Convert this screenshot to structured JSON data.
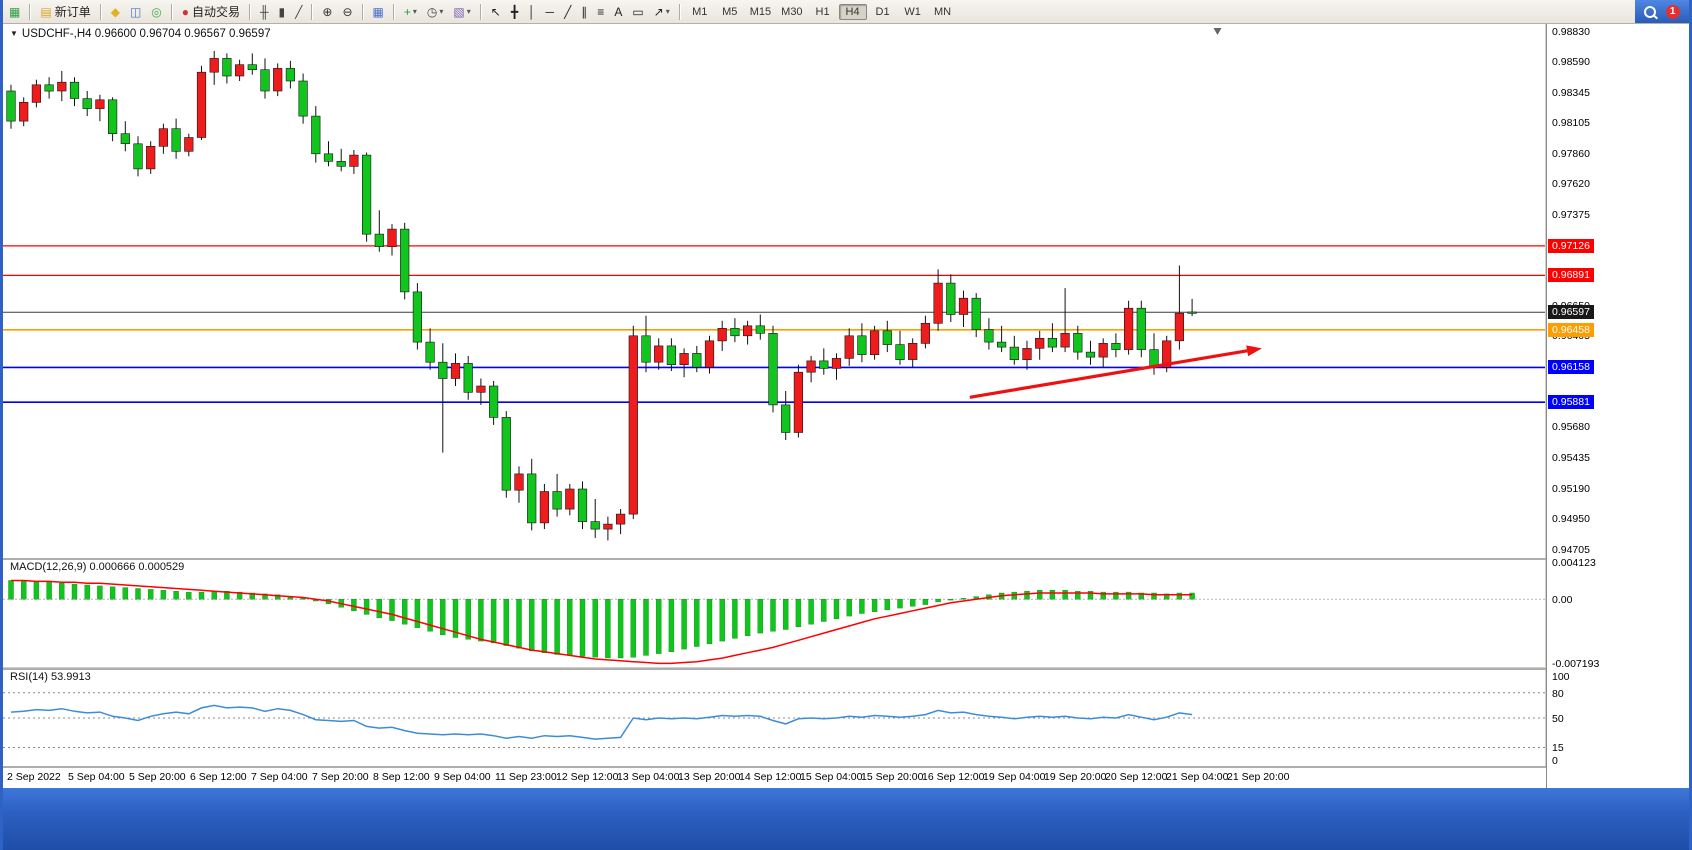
{
  "toolbar": {
    "notification_count": "1",
    "timeframes": [
      "M1",
      "M5",
      "M15",
      "M30",
      "H1",
      "H4",
      "D1",
      "W1",
      "MN"
    ],
    "active_timeframe": "H4",
    "groups": [
      [
        {
          "name": "new-chart-button",
          "glyph": "▦",
          "color": "#2f9e44"
        }
      ],
      [
        {
          "name": "new-order-button",
          "glyph": "▤",
          "color": "#d9a520",
          "label": "新订单"
        }
      ],
      [
        {
          "name": "metaeditor-button",
          "glyph": "◆",
          "color": "#e0b226"
        },
        {
          "name": "data-window-button",
          "glyph": "◫",
          "color": "#4a6fd0"
        },
        {
          "name": "strategy-tester-button",
          "glyph": "◎",
          "color": "#3fae49"
        }
      ],
      [
        {
          "name": "auto-trading-button",
          "glyph": "●",
          "color": "#d03535",
          "label": "自动交易"
        }
      ],
      [
        {
          "name": "bar-chart-button",
          "glyph": "╫",
          "color": "#444444"
        },
        {
          "name": "candlestick-chart-button",
          "glyph": "▮",
          "color": "#444444"
        },
        {
          "name": "line-chart-button",
          "glyph": "╱",
          "color": "#444444"
        }
      ],
      [
        {
          "name": "zoom-in-button",
          "glyph": "⊕",
          "color": "#333333"
        },
        {
          "name": "zoom-out-button",
          "glyph": "⊖",
          "color": "#333333"
        }
      ],
      [
        {
          "name": "tile-windows-button",
          "glyph": "▦",
          "color": "#4a6fd0"
        }
      ],
      [
        {
          "name": "indicators-button",
          "glyph": "+",
          "color": "#2f9e44",
          "caret": true
        },
        {
          "name": "periods-button",
          "glyph": "◷",
          "color": "#444444",
          "caret": true
        },
        {
          "name": "template-button",
          "glyph": "▧",
          "color": "#7a5fb0",
          "caret": true
        }
      ],
      [
        {
          "name": "cursor-button",
          "glyph": "↖",
          "color": "#222222"
        },
        {
          "name": "crosshair-button",
          "glyph": "╋",
          "color": "#222222"
        },
        {
          "name": "vertical-line-button",
          "glyph": "│",
          "color": "#222222"
        },
        {
          "name": "horizontal-line-button",
          "glyph": "─",
          "color": "#222222"
        },
        {
          "name": "trendline-button",
          "glyph": "╱",
          "color": "#222222"
        },
        {
          "name": "channel-button",
          "glyph": "∥",
          "color": "#222222"
        },
        {
          "name": "fibonacci-button",
          "glyph": "≡",
          "color": "#222222"
        },
        {
          "name": "text-button",
          "glyph": "A",
          "color": "#222222"
        },
        {
          "name": "label-button",
          "glyph": "▭",
          "color": "#222222"
        },
        {
          "name": "arrows-button",
          "glyph": "↗",
          "color": "#222222",
          "caret": true
        }
      ]
    ]
  },
  "chart_header": {
    "title": "USDCHF-,H4 0.96600 0.96704 0.96567 0.96597"
  },
  "indicators": {
    "macd_label": "MACD(12,26,9) 0.000666 0.000529",
    "rsi_label": "RSI(14) 53.9913"
  },
  "chart_data": [
    {
      "type": "candlestick",
      "symbol": "USDCHF-",
      "period": "H4",
      "ohlc_current": {
        "open": 0.966,
        "high": 0.96704,
        "low": 0.96567,
        "close": 0.96597
      },
      "ylim": [
        0.9464,
        0.98894
      ],
      "colors": {
        "bull": "#ee1c1c",
        "bear": "#12c41e",
        "wick": "#111111"
      },
      "shift_marker_index": 95,
      "y_ticks": [
        0.9883,
        0.9859,
        0.98345,
        0.98105,
        0.9786,
        0.9762,
        0.97375,
        0.9665,
        0.96405,
        0.9568,
        0.95435,
        0.9519,
        0.9495,
        0.94705
      ],
      "levels": [
        {
          "price": 0.97126,
          "color": "#ff0000",
          "lw": 1.2
        },
        {
          "price": 0.96891,
          "color": "#ff0000",
          "lw": 1.2
        },
        {
          "price": 0.96597,
          "color": "#3c3c3c",
          "lw": 1,
          "badge": "#181818"
        },
        {
          "price": 0.96458,
          "color": "#ff9d00",
          "lw": 1.6
        },
        {
          "price": 0.96158,
          "color": "#0000ff",
          "lw": 1.6
        },
        {
          "price": 0.95881,
          "color": "#0000ff",
          "lw": 1.6
        }
      ],
      "trend_arrow": {
        "from_index": 75.5,
        "from_price": 0.9592,
        "to_index": 98.5,
        "to_price": 0.9631,
        "color": "#ee1111"
      },
      "x_labels": [
        "2 Sep 2022",
        "5 Sep 04:00",
        "5 Sep 20:00",
        "6 Sep 12:00",
        "7 Sep 04:00",
        "7 Sep 20:00",
        "8 Sep 12:00",
        "9 Sep 04:00",
        "11 Sep 23:00",
        "12 Sep 12:00",
        "13 Sep 04:00",
        "13 Sep 20:00",
        "14 Sep 12:00",
        "15 Sep 04:00",
        "15 Sep 20:00",
        "16 Sep 12:00",
        "19 Sep 04:00",
        "19 Sep 20:00",
        "20 Sep 12:00",
        "21 Sep 04:00",
        "21 Sep 20:00"
      ],
      "candles": [
        [
          0.9836,
          0.9841,
          0.9806,
          0.9812
        ],
        [
          0.9812,
          0.9831,
          0.9808,
          0.9827
        ],
        [
          0.9827,
          0.9845,
          0.9823,
          0.9841
        ],
        [
          0.9841,
          0.9847,
          0.983,
          0.9836
        ],
        [
          0.9836,
          0.9852,
          0.9828,
          0.9843
        ],
        [
          0.9843,
          0.9847,
          0.9824,
          0.983
        ],
        [
          0.983,
          0.9836,
          0.9816,
          0.9822
        ],
        [
          0.9822,
          0.9833,
          0.9812,
          0.9829
        ],
        [
          0.9829,
          0.9831,
          0.9796,
          0.9802
        ],
        [
          0.9802,
          0.9812,
          0.9788,
          0.9794
        ],
        [
          0.9794,
          0.98,
          0.9768,
          0.9774
        ],
        [
          0.9774,
          0.9796,
          0.977,
          0.9792
        ],
        [
          0.9792,
          0.981,
          0.9786,
          0.9806
        ],
        [
          0.9806,
          0.9814,
          0.9782,
          0.9788
        ],
        [
          0.9788,
          0.9802,
          0.9784,
          0.9799
        ],
        [
          0.9799,
          0.9856,
          0.9797,
          0.9851
        ],
        [
          0.9851,
          0.9868,
          0.9841,
          0.9862
        ],
        [
          0.9862,
          0.9866,
          0.9842,
          0.9848
        ],
        [
          0.9848,
          0.9861,
          0.9844,
          0.9857
        ],
        [
          0.9857,
          0.9866,
          0.9849,
          0.9853
        ],
        [
          0.9853,
          0.9862,
          0.983,
          0.9836
        ],
        [
          0.9836,
          0.9858,
          0.9832,
          0.9854
        ],
        [
          0.9854,
          0.986,
          0.9838,
          0.9844
        ],
        [
          0.9844,
          0.985,
          0.981,
          0.9816
        ],
        [
          0.9816,
          0.9824,
          0.9779,
          0.9786
        ],
        [
          0.9786,
          0.9796,
          0.9776,
          0.978
        ],
        [
          0.978,
          0.979,
          0.9772,
          0.9776
        ],
        [
          0.9776,
          0.9789,
          0.977,
          0.9785
        ],
        [
          0.9785,
          0.9787,
          0.9716,
          0.9722
        ],
        [
          0.9722,
          0.9741,
          0.9708,
          0.9712
        ],
        [
          0.9712,
          0.973,
          0.9705,
          0.9726
        ],
        [
          0.9726,
          0.9731,
          0.967,
          0.9676
        ],
        [
          0.9676,
          0.9683,
          0.963,
          0.9636
        ],
        [
          0.9636,
          0.9647,
          0.9614,
          0.962
        ],
        [
          0.962,
          0.9635,
          0.9548,
          0.9607
        ],
        [
          0.9607,
          0.9627,
          0.9601,
          0.9619
        ],
        [
          0.9619,
          0.9625,
          0.959,
          0.9596
        ],
        [
          0.9596,
          0.9607,
          0.9586,
          0.9601
        ],
        [
          0.9601,
          0.9605,
          0.957,
          0.9576
        ],
        [
          0.9576,
          0.9581,
          0.9512,
          0.9518
        ],
        [
          0.9518,
          0.9537,
          0.9508,
          0.9531
        ],
        [
          0.9531,
          0.9543,
          0.9486,
          0.9492
        ],
        [
          0.9492,
          0.9523,
          0.9487,
          0.9517
        ],
        [
          0.9517,
          0.9531,
          0.9497,
          0.9503
        ],
        [
          0.9503,
          0.9523,
          0.9498,
          0.9519
        ],
        [
          0.9519,
          0.9525,
          0.9487,
          0.9493
        ],
        [
          0.9493,
          0.9511,
          0.948,
          0.9487
        ],
        [
          0.9487,
          0.9497,
          0.9478,
          0.9491
        ],
        [
          0.9491,
          0.9503,
          0.9483,
          0.9499
        ],
        [
          0.9499,
          0.9649,
          0.9495,
          0.9641
        ],
        [
          0.9641,
          0.9657,
          0.9612,
          0.962
        ],
        [
          0.962,
          0.9639,
          0.9614,
          0.9633
        ],
        [
          0.9633,
          0.9639,
          0.9613,
          0.9618
        ],
        [
          0.9618,
          0.9631,
          0.9608,
          0.9627
        ],
        [
          0.9627,
          0.9633,
          0.9612,
          0.9616
        ],
        [
          0.9616,
          0.9641,
          0.9611,
          0.9637
        ],
        [
          0.9637,
          0.9653,
          0.9629,
          0.9647
        ],
        [
          0.9647,
          0.9655,
          0.9636,
          0.9641
        ],
        [
          0.9641,
          0.9653,
          0.9634,
          0.9649
        ],
        [
          0.9649,
          0.9658,
          0.9638,
          0.9643
        ],
        [
          0.9643,
          0.9649,
          0.958,
          0.9586
        ],
        [
          0.9586,
          0.9597,
          0.9558,
          0.9564
        ],
        [
          0.9564,
          0.9618,
          0.956,
          0.9612
        ],
        [
          0.9612,
          0.9625,
          0.9604,
          0.9621
        ],
        [
          0.9621,
          0.9631,
          0.961,
          0.9615
        ],
        [
          0.9615,
          0.9627,
          0.9606,
          0.9623
        ],
        [
          0.9623,
          0.9647,
          0.9617,
          0.9641
        ],
        [
          0.9641,
          0.9651,
          0.962,
          0.9626
        ],
        [
          0.9626,
          0.9649,
          0.9622,
          0.9645
        ],
        [
          0.9645,
          0.9653,
          0.9628,
          0.9634
        ],
        [
          0.9634,
          0.9645,
          0.9618,
          0.9622
        ],
        [
          0.9622,
          0.9639,
          0.9616,
          0.9635
        ],
        [
          0.9635,
          0.9657,
          0.9631,
          0.9651
        ],
        [
          0.9651,
          0.9694,
          0.9645,
          0.9683
        ],
        [
          0.9683,
          0.969,
          0.9652,
          0.9658
        ],
        [
          0.9658,
          0.9677,
          0.9648,
          0.9671
        ],
        [
          0.9671,
          0.9675,
          0.964,
          0.9646
        ],
        [
          0.9646,
          0.9655,
          0.963,
          0.9636
        ],
        [
          0.9636,
          0.9649,
          0.9628,
          0.9632
        ],
        [
          0.9632,
          0.9641,
          0.9618,
          0.9622
        ],
        [
          0.9622,
          0.9637,
          0.9614,
          0.9631
        ],
        [
          0.9631,
          0.9645,
          0.9622,
          0.9639
        ],
        [
          0.9639,
          0.9651,
          0.9628,
          0.9632
        ],
        [
          0.9632,
          0.9679,
          0.9628,
          0.9643
        ],
        [
          0.9643,
          0.9649,
          0.9622,
          0.9628
        ],
        [
          0.9628,
          0.9637,
          0.9618,
          0.9624
        ],
        [
          0.9624,
          0.9639,
          0.9616,
          0.9635
        ],
        [
          0.9635,
          0.9643,
          0.9624,
          0.963
        ],
        [
          0.963,
          0.9669,
          0.9626,
          0.9663
        ],
        [
          0.9663,
          0.9669,
          0.9624,
          0.963
        ],
        [
          0.963,
          0.9643,
          0.961,
          0.9616
        ],
        [
          0.9616,
          0.9641,
          0.9612,
          0.9637
        ],
        [
          0.9637,
          0.9697,
          0.963,
          0.9659
        ],
        [
          0.966,
          0.96704,
          0.96567,
          0.96597
        ]
      ]
    },
    {
      "type": "macd-histogram",
      "label": "MACD(12,26,9) 0.000666 0.000529",
      "ylim": [
        -0.0076,
        0.0044
      ],
      "colors": {
        "hist": "#12c41e",
        "signal": "#ff0000"
      },
      "y_ticks": [
        {
          "v": 0.004123,
          "t": "0.004123"
        },
        {
          "v": 0,
          "t": "0.00"
        },
        {
          "v": -0.007193,
          "t": "-0.007193"
        }
      ],
      "histogram": [
        0.0021,
        0.0021,
        0.002,
        0.0019,
        0.0018,
        0.0017,
        0.0016,
        0.0015,
        0.0014,
        0.0013,
        0.0012,
        0.0011,
        0.001,
        0.0009,
        0.0008,
        0.0008,
        0.0009,
        0.0009,
        0.0008,
        0.0007,
        0.0006,
        0.0005,
        0.0003,
        0.0001,
        -0.0002,
        -0.0005,
        -0.0009,
        -0.0013,
        -0.0017,
        -0.0021,
        -0.0024,
        -0.0028,
        -0.0032,
        -0.0036,
        -0.004,
        -0.0043,
        -0.0045,
        -0.0047,
        -0.0049,
        -0.0052,
        -0.0055,
        -0.0058,
        -0.006,
        -0.0062,
        -0.0063,
        -0.0064,
        -0.0065,
        -0.0066,
        -0.0066,
        -0.0065,
        -0.0063,
        -0.0061,
        -0.0059,
        -0.0056,
        -0.0053,
        -0.005,
        -0.0047,
        -0.0044,
        -0.0041,
        -0.0038,
        -0.0036,
        -0.0034,
        -0.0031,
        -0.0028,
        -0.0025,
        -0.0022,
        -0.0019,
        -0.0016,
        -0.0014,
        -0.0012,
        -0.001,
        -0.0008,
        -0.0006,
        -0.0003,
        -0.0001,
        0.0001,
        0.0003,
        0.0005,
        0.0007,
        0.0008,
        0.0009,
        0.001,
        0.001,
        0.001,
        0.0009,
        0.0009,
        0.0008,
        0.0008,
        0.0008,
        0.0007,
        0.0007,
        0.0006,
        0.0007,
        0.0007
      ],
      "signal": [
        0.0021,
        0.0021,
        0.002,
        0.002,
        0.0019,
        0.0019,
        0.0018,
        0.0018,
        0.0017,
        0.0016,
        0.0015,
        0.0014,
        0.0013,
        0.0012,
        0.0011,
        0.001,
        0.0009,
        0.0008,
        0.0007,
        0.0006,
        0.0005,
        0.0004,
        0.0003,
        0.0002,
        0.0,
        -0.0002,
        -0.0005,
        -0.0008,
        -0.0011,
        -0.0014,
        -0.0017,
        -0.0021,
        -0.0025,
        -0.0029,
        -0.0033,
        -0.0037,
        -0.0041,
        -0.0045,
        -0.0048,
        -0.0051,
        -0.0054,
        -0.0057,
        -0.0059,
        -0.0061,
        -0.0063,
        -0.0065,
        -0.0067,
        -0.0068,
        -0.0069,
        -0.007,
        -0.0071,
        -0.0072,
        -0.0072,
        -0.0071,
        -0.007,
        -0.0068,
        -0.0066,
        -0.0063,
        -0.006,
        -0.0057,
        -0.0054,
        -0.005,
        -0.0046,
        -0.0042,
        -0.0038,
        -0.0034,
        -0.003,
        -0.0026,
        -0.0022,
        -0.0019,
        -0.0016,
        -0.0013,
        -0.001,
        -0.0007,
        -0.0004,
        -0.0002,
        0.0,
        0.0002,
        0.0004,
        0.0005,
        0.0006,
        0.0007,
        0.0007,
        0.0007,
        0.0007,
        0.0007,
        0.0006,
        0.0006,
        0.0006,
        0.0006,
        0.0005,
        0.0005,
        0.0005,
        0.0005
      ]
    },
    {
      "type": "line",
      "label": "RSI(14) 53.9913",
      "ylim": [
        -7,
        107
      ],
      "color": "#3c8cd8",
      "levels": [
        80,
        50,
        15
      ],
      "y_ticks": [
        {
          "v": 100,
          "t": "100"
        },
        {
          "v": 80,
          "t": "80"
        },
        {
          "v": 50,
          "t": "50"
        },
        {
          "v": 15,
          "t": "15"
        },
        {
          "v": 0,
          "t": "0"
        }
      ],
      "values": [
        57,
        58,
        60,
        59,
        61,
        58,
        56,
        57,
        52,
        50,
        47,
        52,
        55,
        57,
        55,
        62,
        65,
        62,
        63,
        62,
        58,
        61,
        59,
        54,
        48,
        47,
        46,
        47,
        40,
        38,
        39,
        35,
        32,
        31,
        30,
        31,
        30,
        31,
        29,
        26,
        28,
        26,
        29,
        28,
        29,
        27,
        25,
        26,
        27,
        50,
        48,
        50,
        49,
        50,
        49,
        51,
        53,
        52,
        53,
        52,
        47,
        43,
        49,
        50,
        49,
        50,
        52,
        51,
        53,
        52,
        51,
        52,
        54,
        59,
        56,
        57,
        54,
        52,
        51,
        49,
        51,
        52,
        51,
        52,
        50,
        49,
        51,
        50,
        54,
        51,
        48,
        51,
        56,
        54
      ]
    }
  ]
}
